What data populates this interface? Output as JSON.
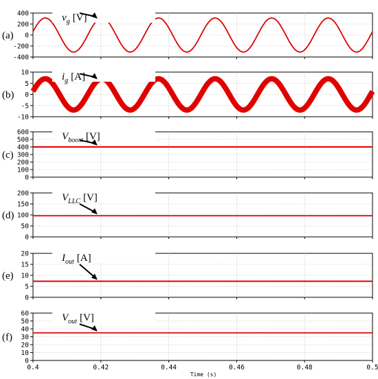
{
  "chart_data": [
    {
      "type": "line",
      "panel": "(a)",
      "annotation": {
        "var": "v",
        "sub": "g",
        "unit": "[V]"
      },
      "ylim": [
        -400,
        400
      ],
      "yticks": [
        "400",
        "200",
        "0",
        "-200",
        "-400"
      ],
      "xlim": [
        0.4,
        0.5
      ],
      "series": [
        {
          "kind": "sine",
          "amplitude": 310,
          "frequency_hz": 60,
          "offset": 0
        }
      ],
      "color": "#e00000",
      "grid": true
    },
    {
      "type": "line",
      "panel": "(b)",
      "annotation": {
        "var": "i",
        "sub": "g",
        "unit": "[A]"
      },
      "ylim": [
        -10,
        10
      ],
      "yticks": [
        "10",
        "5",
        "0",
        "-5",
        "-10"
      ],
      "xlim": [
        0.4,
        0.5
      ],
      "series": [
        {
          "kind": "sine",
          "amplitude": 7,
          "frequency_hz": 60,
          "offset": 0,
          "ripple": 1.2
        }
      ],
      "color": "#e00000",
      "grid": true
    },
    {
      "type": "line",
      "panel": "(c)",
      "annotation": {
        "var": "V",
        "sub": "boost",
        "unit": "[V]"
      },
      "ylim": [
        0,
        600
      ],
      "yticks": [
        "600",
        "500",
        "400",
        "300",
        "200",
        "100",
        "0"
      ],
      "xlim": [
        0.4,
        0.5
      ],
      "series": [
        {
          "kind": "dc",
          "value": 400,
          "ripple": 3
        }
      ],
      "color": "#e00000",
      "grid": true
    },
    {
      "type": "line",
      "panel": "(d)",
      "annotation": {
        "var": "V",
        "sub": "LLC",
        "unit": "[V]"
      },
      "ylim": [
        0,
        200
      ],
      "yticks": [
        "200",
        "150",
        "100",
        "50",
        "0"
      ],
      "xlim": [
        0.4,
        0.5
      ],
      "series": [
        {
          "kind": "dc",
          "value": 96,
          "ripple": 0
        }
      ],
      "color": "#e00000",
      "grid": true
    },
    {
      "type": "line",
      "panel": "(e)",
      "annotation": {
        "var": "I",
        "sub": "out",
        "unit": "[A]"
      },
      "ylim": [
        0,
        20
      ],
      "yticks": [
        "20",
        "15",
        "10",
        "5",
        "0"
      ],
      "xlim": [
        0.4,
        0.5
      ],
      "series": [
        {
          "kind": "dc",
          "value": 7.3,
          "ripple": 0.3
        }
      ],
      "color": "#e00000",
      "grid": true
    },
    {
      "type": "line",
      "panel": "(f)",
      "annotation": {
        "var": "V",
        "sub": "out",
        "unit": "[V]"
      },
      "ylim": [
        0,
        60
      ],
      "yticks": [
        "60",
        "50",
        "40",
        "30",
        "20",
        "10",
        "0"
      ],
      "xlim": [
        0.4,
        0.5
      ],
      "series": [
        {
          "kind": "dc",
          "value": 35,
          "ripple": 0
        }
      ],
      "color": "#e00000",
      "grid": true
    }
  ],
  "x_axis": {
    "label": "Time (s)",
    "ticks": [
      "0.4",
      "0.42",
      "0.44",
      "0.46",
      "0.48",
      "0.5"
    ]
  }
}
